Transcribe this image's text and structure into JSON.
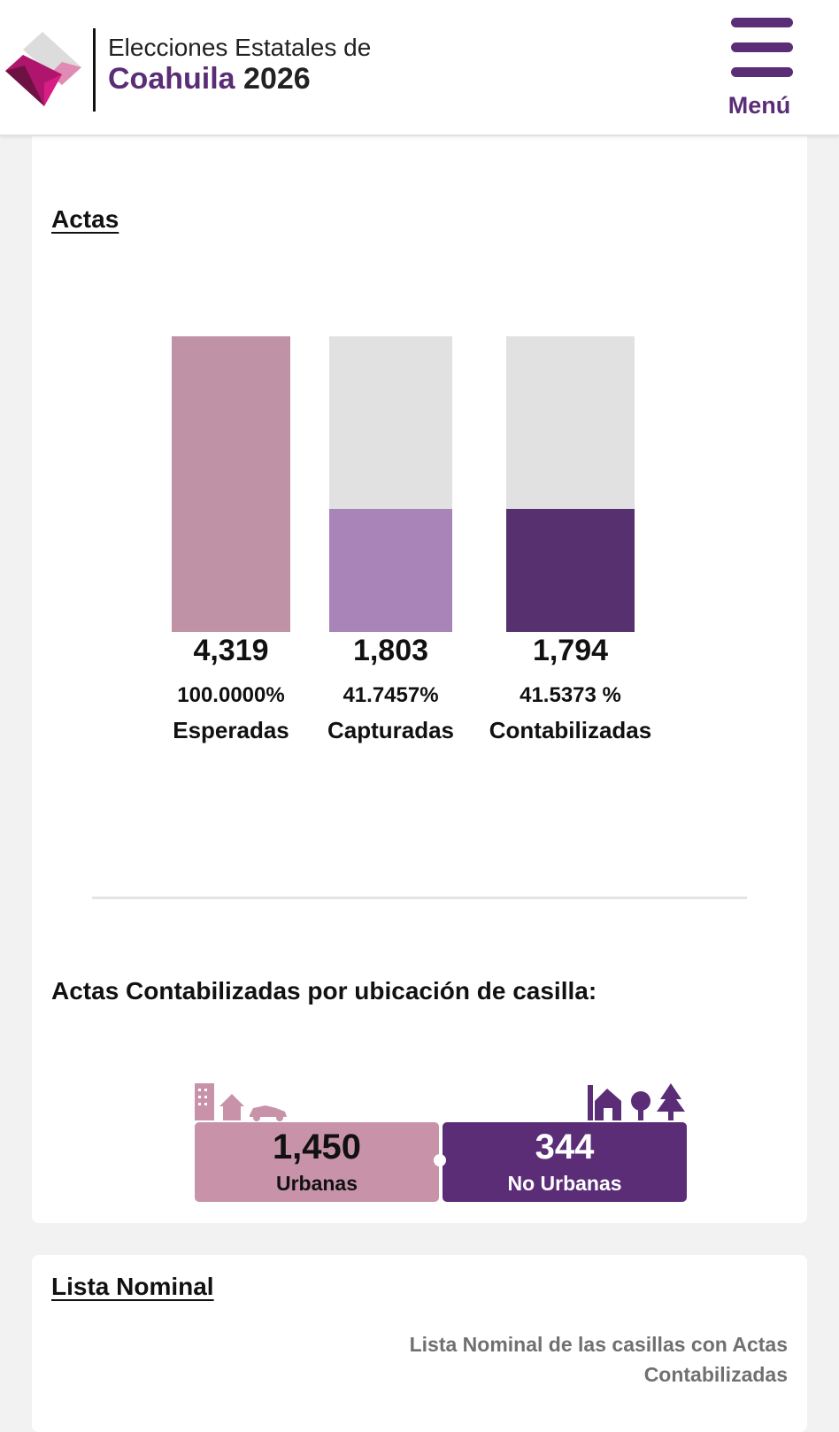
{
  "header": {
    "title_line1": "Elecciones Estatales de",
    "title_line2_name": "Coahuila",
    "title_line2_year": "2026",
    "menu_label": "Menú",
    "icons": {
      "logo": "ine-diamond-logo",
      "menu": "hamburger-menu-icon"
    }
  },
  "actas": {
    "title": "Actas",
    "chart_data": {
      "type": "bar",
      "categories": [
        "Esperadas",
        "Capturadas",
        "Contabilizadas"
      ],
      "values": [
        4319,
        1803,
        1794
      ],
      "value_labels": [
        "4,319",
        "1,803",
        "1,794"
      ],
      "percent_labels": [
        "100.0000%",
        "41.7457%",
        "41.5373 %"
      ],
      "percent": [
        100.0,
        41.7457,
        41.5373
      ],
      "ylim": [
        0,
        4319
      ],
      "colors": [
        "#bf92a6",
        "#a884b8",
        "#57306f"
      ],
      "track_color": "#e1e1e1",
      "grid": false,
      "legend": "none"
    }
  },
  "ubicacion": {
    "title": "Actas Contabilizadas por ubicación de casilla:",
    "urbanas": {
      "value": "1,450",
      "label": "Urbanas",
      "color": "#c893a8",
      "icons": [
        "building-icon",
        "house-icon",
        "car-icon"
      ]
    },
    "no_urbanas": {
      "value": "344",
      "label": "No Urbanas",
      "color": "#5a2d76",
      "icons": [
        "farm-barn-icon",
        "tree-icon",
        "pine-tree-icon"
      ]
    }
  },
  "lista_nominal": {
    "title": "Lista Nominal",
    "note_line1": "Lista Nominal de las casillas con Actas",
    "note_line2": "Contabilizadas"
  }
}
